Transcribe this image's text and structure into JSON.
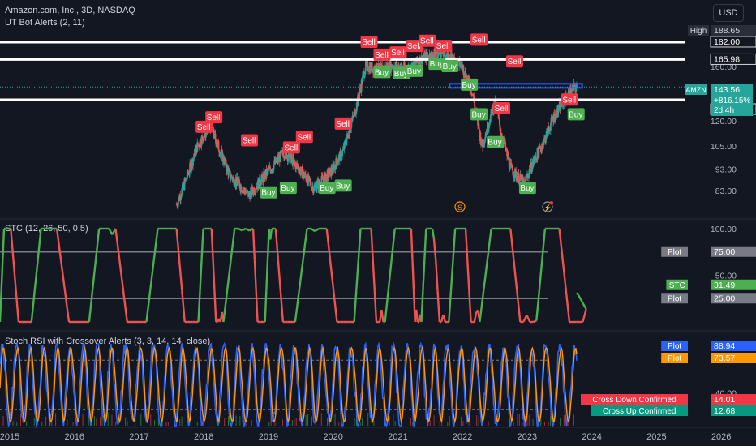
{
  "header": {
    "symbol_line": "Amazon.com, Inc., 3D, NASDAQ",
    "indicator": "UT Bot Alerts (2, 11)",
    "currency": "USD"
  },
  "colors": {
    "background": "#131722",
    "up": "#26a69a",
    "down": "#ef5350",
    "sell": "#f23645",
    "buy": "#4caf50",
    "stc_green": "#4caf50",
    "stc_red": "#ef5350",
    "k_line": "#2962ff",
    "d_line": "#ff9800",
    "hline": "#ffffff",
    "box": "#2962ff"
  },
  "chart_data": [
    {
      "type": "candlestick",
      "title": "Amazon.com, Inc., 3D, NASDAQ",
      "ylim": [
        72,
        200
      ],
      "yscale": "log",
      "y_ticks": [
        "160.00",
        "140.00",
        "120.00",
        "105.00",
        "93.00",
        "83.00"
      ],
      "path": [
        [
          2017.63,
          77
        ],
        [
          2017.8,
          90
        ],
        [
          2017.95,
          105
        ],
        [
          2018.15,
          117
        ],
        [
          2018.45,
          90
        ],
        [
          2018.75,
          81
        ],
        [
          2019.0,
          90
        ],
        [
          2019.3,
          102
        ],
        [
          2019.55,
          92
        ],
        [
          2019.75,
          84
        ],
        [
          2020.0,
          91
        ],
        [
          2020.2,
          102
        ],
        [
          2020.4,
          128
        ],
        [
          2020.55,
          160
        ],
        [
          2020.75,
          158
        ],
        [
          2021.0,
          161
        ],
        [
          2021.2,
          158
        ],
        [
          2021.45,
          168
        ],
        [
          2021.7,
          173
        ],
        [
          2021.9,
          166
        ],
        [
          2022.05,
          160
        ],
        [
          2022.2,
          140
        ],
        [
          2022.35,
          105
        ],
        [
          2022.55,
          133
        ],
        [
          2022.65,
          112
        ],
        [
          2022.8,
          93
        ],
        [
          2023.0,
          86
        ],
        [
          2023.15,
          97
        ],
        [
          2023.3,
          107
        ],
        [
          2023.45,
          122
        ],
        [
          2023.6,
          132
        ],
        [
          2023.75,
          142
        ],
        [
          2023.82,
          143.56
        ]
      ],
      "horizontal_levels": [
        182.0,
        165.98,
        134.17
      ],
      "price_box": {
        "from": 2021.85,
        "to": 2023.9,
        "low": 144,
        "high": 146
      },
      "signals": [
        {
          "label": "Sell",
          "x": 2018.05,
          "y": 116
        },
        {
          "label": "Sell",
          "x": 2018.2,
          "y": 122
        },
        {
          "label": "Sell",
          "x": 2018.75,
          "y": 108
        },
        {
          "label": "Sell",
          "x": 2019.4,
          "y": 104
        },
        {
          "label": "Sell",
          "x": 2019.6,
          "y": 110
        },
        {
          "label": "Sell",
          "x": 2020.2,
          "y": 118
        },
        {
          "label": "Sell",
          "x": 2020.6,
          "y": 182
        },
        {
          "label": "Sell",
          "x": 2020.8,
          "y": 170
        },
        {
          "label": "Sell",
          "x": 2021.05,
          "y": 172
        },
        {
          "label": "Sell",
          "x": 2021.3,
          "y": 178
        },
        {
          "label": "Sell",
          "x": 2021.5,
          "y": 183
        },
        {
          "label": "Sell",
          "x": 2021.75,
          "y": 178
        },
        {
          "label": "Sell",
          "x": 2022.3,
          "y": 184
        },
        {
          "label": "Sell",
          "x": 2022.85,
          "y": 164
        },
        {
          "label": "Sell",
          "x": 2022.65,
          "y": 128
        },
        {
          "label": "Sell",
          "x": 2023.7,
          "y": 134
        },
        {
          "label": "Buy",
          "x": 2019.05,
          "y": 82
        },
        {
          "label": "Buy",
          "x": 2019.35,
          "y": 84
        },
        {
          "label": "Buy",
          "x": 2019.95,
          "y": 84
        },
        {
          "label": "Buy",
          "x": 2020.2,
          "y": 85
        },
        {
          "label": "Buy",
          "x": 2020.8,
          "y": 155
        },
        {
          "label": "Buy",
          "x": 2021.1,
          "y": 154
        },
        {
          "label": "Buy",
          "x": 2021.3,
          "y": 156
        },
        {
          "label": "Buy",
          "x": 2021.65,
          "y": 162
        },
        {
          "label": "Buy",
          "x": 2021.85,
          "y": 160
        },
        {
          "label": "Buy",
          "x": 2022.15,
          "y": 145
        },
        {
          "label": "Buy",
          "x": 2022.3,
          "y": 124
        },
        {
          "label": "Buy",
          "x": 2022.55,
          "y": 107
        },
        {
          "label": "Buy",
          "x": 2023.05,
          "y": 84
        },
        {
          "label": "Buy",
          "x": 2023.8,
          "y": 124
        }
      ],
      "scale_labels": [
        {
          "name": "High",
          "value": "188.65",
          "kind": "dark"
        },
        {
          "name": "",
          "value": "182.00",
          "kind": "outline"
        },
        {
          "name": "",
          "value": "165.98",
          "kind": "outline"
        },
        {
          "name": "AMZN",
          "value": "143.56",
          "kind": "green"
        },
        {
          "name": "",
          "value": "+816.15%",
          "kind": "green"
        },
        {
          "name": "",
          "value": "2d 4h",
          "kind": "green"
        },
        {
          "name": "",
          "value": "134.17",
          "kind": "outline"
        }
      ]
    },
    {
      "type": "line",
      "title": "STC (12, 26, 50, 0.5)",
      "ylim": [
        0,
        100
      ],
      "y_ticks": [
        "100.00",
        "50.00"
      ],
      "reference_lines": [
        75,
        25
      ],
      "last_value": 31.49,
      "scale_labels": [
        {
          "name": "Plot",
          "value": "75.00"
        },
        {
          "name": "STC",
          "value": "31.49"
        },
        {
          "name": "Plot",
          "value": "25.00"
        }
      ]
    },
    {
      "type": "line",
      "title": "Stoch RSI with Crossover Alerts (3, 3, 14, 14, close)",
      "ylim": [
        0,
        100
      ],
      "y_ticks": [
        "40.00"
      ],
      "reference_lines": [
        80,
        20
      ],
      "series": [
        {
          "name": "Plot",
          "last": 88.94
        },
        {
          "name": "Plot",
          "last": 73.57
        }
      ],
      "scale_labels": [
        {
          "name": "Plot",
          "value": "88.94",
          "kind": "blue"
        },
        {
          "name": "Plot",
          "value": "73.57",
          "kind": "orange"
        },
        {
          "name": "Cross Down Confirmed",
          "value": "14.01",
          "kind": "red"
        },
        {
          "name": "Cross Up Confirmed",
          "value": "12.68",
          "kind": "green"
        }
      ]
    }
  ],
  "x_axis": {
    "range": [
      2014.9,
      2026.6
    ],
    "ticks": [
      {
        "label": "2015",
        "x": 2015
      },
      {
        "label": "2016",
        "x": 2016
      },
      {
        "label": "2017",
        "x": 2017
      },
      {
        "label": "2018",
        "x": 2018
      },
      {
        "label": "2019",
        "x": 2019
      },
      {
        "label": "2020",
        "x": 2020
      },
      {
        "label": "2021",
        "x": 2021
      },
      {
        "label": "2022",
        "x": 2022
      },
      {
        "label": "2023",
        "x": 2023
      },
      {
        "label": "2024",
        "x": 2024
      },
      {
        "label": "2025",
        "x": 2025
      },
      {
        "label": "2026",
        "x": 2026
      }
    ]
  }
}
